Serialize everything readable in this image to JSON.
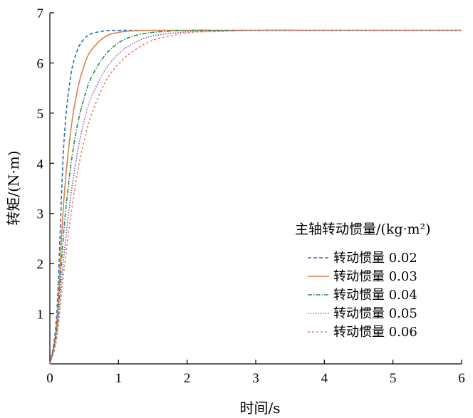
{
  "chart_data": {
    "type": "line",
    "xlabel": "时间/s",
    "ylabel": "转矩/(N·m)",
    "xlim": [
      0,
      6
    ],
    "ylim": [
      0,
      7
    ],
    "xticks": [
      "0",
      "1",
      "2",
      "3",
      "4",
      "5",
      "6"
    ],
    "yticks": [
      "1",
      "2",
      "3",
      "4",
      "5",
      "6",
      "7"
    ],
    "grid": false,
    "legend": {
      "title": "主轴转动惯量/(kg·m²)",
      "placement": "right-center"
    },
    "x": [
      0,
      0.1,
      0.2,
      0.3,
      0.4,
      0.5,
      0.6,
      0.8,
      1.0,
      1.2,
      1.5,
      2.0,
      2.5,
      3.0,
      4.0,
      5.0,
      6.0
    ],
    "series": [
      {
        "name": "转动惯量 0.02",
        "color": "#2f6fb0",
        "dash": "dashed",
        "values": [
          0,
          1.0,
          4.3,
          5.7,
          6.25,
          6.48,
          6.58,
          6.64,
          6.65,
          6.65,
          6.65,
          6.65,
          6.65,
          6.65,
          6.65,
          6.65,
          6.65
        ]
      },
      {
        "name": "转动惯量 0.03",
        "color": "#d9824f",
        "dash": "solid",
        "values": [
          0,
          0.8,
          3.2,
          4.6,
          5.45,
          5.95,
          6.25,
          6.52,
          6.61,
          6.64,
          6.65,
          6.65,
          6.65,
          6.65,
          6.65,
          6.65,
          6.65
        ]
      },
      {
        "name": "转动惯量 0.04",
        "color": "#2e8b4a",
        "dash": "dashdot",
        "values": [
          0,
          0.7,
          2.6,
          3.9,
          4.75,
          5.3,
          5.7,
          6.15,
          6.4,
          6.53,
          6.61,
          6.65,
          6.65,
          6.65,
          6.65,
          6.65,
          6.65
        ]
      },
      {
        "name": "转动惯量 0.05",
        "color": "#8a5fb5",
        "dash": "dotted",
        "values": [
          0,
          0.6,
          2.1,
          3.3,
          4.2,
          4.85,
          5.3,
          5.85,
          6.18,
          6.38,
          6.54,
          6.62,
          6.64,
          6.65,
          6.65,
          6.65,
          6.65
        ]
      },
      {
        "name": "转动惯量 0.06",
        "color": "#e8836a",
        "dash": "shortdash",
        "values": [
          0,
          0.5,
          1.8,
          2.9,
          3.8,
          4.45,
          4.95,
          5.6,
          5.98,
          6.22,
          6.45,
          6.6,
          6.63,
          6.65,
          6.65,
          6.65,
          6.65
        ]
      }
    ]
  }
}
